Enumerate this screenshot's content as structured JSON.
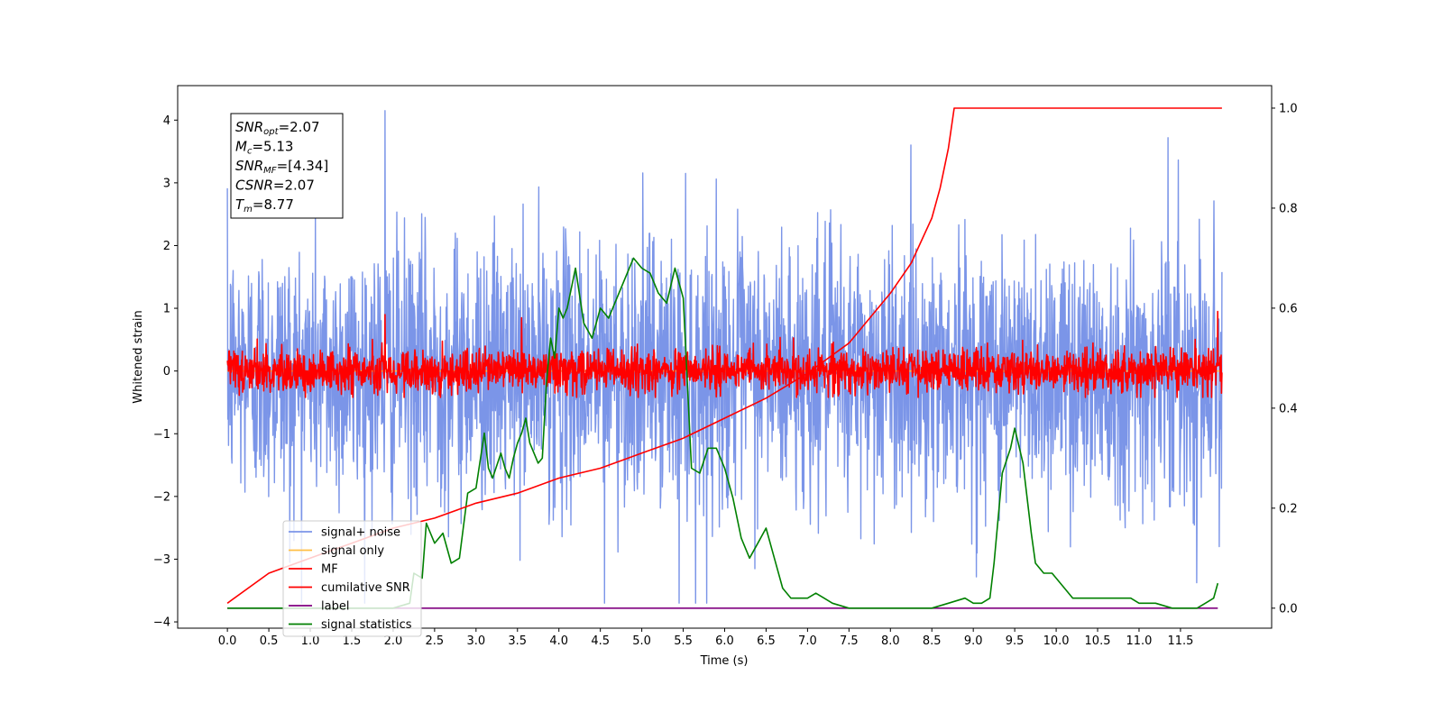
{
  "chart_data": {
    "type": "line",
    "xlabel": "Time (s)",
    "ylabel": "Whitened strain",
    "xlim": [
      -0.6,
      12.6
    ],
    "ylim_left": [
      -4.1,
      4.55
    ],
    "ylim_right": [
      -0.04,
      1.045
    ],
    "x_ticks": [
      "0.0",
      "0.5",
      "1.0",
      "1.5",
      "2.0",
      "2.5",
      "3.0",
      "3.5",
      "4.0",
      "4.5",
      "5.0",
      "5.5",
      "6.0",
      "6.5",
      "7.0",
      "7.5",
      "8.0",
      "8.5",
      "9.0",
      "9.5",
      "10.0",
      "10.5",
      "11.0",
      "11.5"
    ],
    "y_ticks_left": [
      "4",
      "3",
      "2",
      "1",
      "0",
      "−1",
      "−2",
      "−3",
      "−4"
    ],
    "y_ticks_right": [
      "1.0",
      "0.8",
      "0.6",
      "0.4",
      "0.2",
      "0.0"
    ],
    "legend_position": "lower-left",
    "grid": false,
    "annotation_box": [
      {
        "base": "SNR",
        "sub": "opt",
        "value": "=2.07"
      },
      {
        "base": "M",
        "sub": "c",
        "value": "=5.13"
      },
      {
        "base": "SNR",
        "sub": "MF",
        "value": "=[4.34]"
      },
      {
        "base": "CSNR",
        "sub": "",
        "value": "=2.07"
      },
      {
        "base": "T",
        "sub": "m",
        "value": "=8.77"
      }
    ],
    "series": [
      {
        "name": "signal+ noise",
        "axis": "left",
        "color": "#7b95e8",
        "kind": "noise",
        "x_range": [
          0.0,
          12.0
        ],
        "std": 1.05,
        "peak_max": 4.15,
        "peak_min": -3.7
      },
      {
        "name": "signal only",
        "axis": "left",
        "color": "#ffbf47",
        "kind": "flat",
        "x_range": [
          0.0,
          12.0
        ],
        "value": 0.0
      },
      {
        "name": "MF",
        "axis": "left",
        "color": "#ff0000",
        "kind": "noise",
        "x_range": [
          0.0,
          12.0
        ],
        "std": 0.17,
        "peak_max": 0.95,
        "peak_min": -0.42
      },
      {
        "name": "cumilative SNR",
        "axis": "right",
        "color": "#ff0000",
        "kind": "curve",
        "x": [
          0.0,
          0.5,
          1.0,
          1.5,
          2.0,
          2.5,
          3.0,
          3.5,
          4.0,
          4.5,
          5.0,
          5.5,
          6.0,
          6.5,
          7.0,
          7.5,
          8.0,
          8.25,
          8.5,
          8.6,
          8.7,
          8.77,
          12.0
        ],
        "values": [
          0.01,
          0.07,
          0.1,
          0.13,
          0.16,
          0.18,
          0.21,
          0.23,
          0.26,
          0.28,
          0.31,
          0.34,
          0.38,
          0.42,
          0.47,
          0.53,
          0.63,
          0.69,
          0.78,
          0.84,
          0.92,
          1.0,
          1.0
        ]
      },
      {
        "name": "label",
        "axis": "right",
        "color": "#800080",
        "kind": "flat",
        "x_range": [
          0.0,
          11.95
        ],
        "value": 0.0
      },
      {
        "name": "signal statistics",
        "axis": "right",
        "color": "#008000",
        "kind": "curve",
        "x": [
          0.0,
          0.5,
          1.0,
          1.5,
          2.0,
          2.2,
          2.25,
          2.35,
          2.4,
          2.5,
          2.6,
          2.7,
          2.8,
          2.9,
          3.0,
          3.1,
          3.15,
          3.2,
          3.3,
          3.35,
          3.4,
          3.45,
          3.5,
          3.55,
          3.6,
          3.65,
          3.7,
          3.75,
          3.8,
          3.85,
          3.9,
          3.95,
          4.0,
          4.05,
          4.1,
          4.2,
          4.3,
          4.4,
          4.5,
          4.6,
          4.7,
          4.8,
          4.9,
          5.0,
          5.1,
          5.2,
          5.3,
          5.4,
          5.5,
          5.6,
          5.7,
          5.8,
          5.9,
          6.0,
          6.1,
          6.2,
          6.3,
          6.4,
          6.5,
          6.6,
          6.7,
          6.8,
          6.9,
          7.0,
          7.1,
          7.2,
          7.3,
          7.5,
          7.7,
          8.0,
          8.5,
          8.7,
          8.9,
          9.0,
          9.1,
          9.2,
          9.25,
          9.35,
          9.45,
          9.5,
          9.6,
          9.7,
          9.75,
          9.85,
          9.95,
          10.1,
          10.2,
          10.3,
          10.4,
          10.5,
          10.7,
          10.8,
          10.9,
          11.0,
          11.2,
          11.4,
          11.6,
          11.7,
          11.8,
          11.9,
          11.95
        ],
        "values": [
          0.0,
          0.0,
          0.0,
          0.0,
          0.0,
          0.01,
          0.07,
          0.06,
          0.17,
          0.13,
          0.15,
          0.09,
          0.1,
          0.23,
          0.24,
          0.35,
          0.28,
          0.26,
          0.31,
          0.28,
          0.26,
          0.3,
          0.33,
          0.35,
          0.38,
          0.33,
          0.31,
          0.29,
          0.3,
          0.45,
          0.54,
          0.5,
          0.6,
          0.58,
          0.6,
          0.68,
          0.57,
          0.54,
          0.6,
          0.58,
          0.62,
          0.66,
          0.7,
          0.68,
          0.67,
          0.63,
          0.61,
          0.68,
          0.62,
          0.28,
          0.27,
          0.32,
          0.32,
          0.28,
          0.22,
          0.14,
          0.1,
          0.13,
          0.16,
          0.1,
          0.04,
          0.02,
          0.02,
          0.02,
          0.03,
          0.02,
          0.01,
          0.0,
          0.0,
          0.0,
          0.0,
          0.01,
          0.02,
          0.01,
          0.01,
          0.02,
          0.09,
          0.27,
          0.32,
          0.36,
          0.29,
          0.15,
          0.09,
          0.07,
          0.07,
          0.04,
          0.02,
          0.02,
          0.02,
          0.02,
          0.02,
          0.02,
          0.02,
          0.01,
          0.01,
          0.0,
          0.0,
          0.0,
          0.01,
          0.02,
          0.05
        ]
      }
    ]
  }
}
